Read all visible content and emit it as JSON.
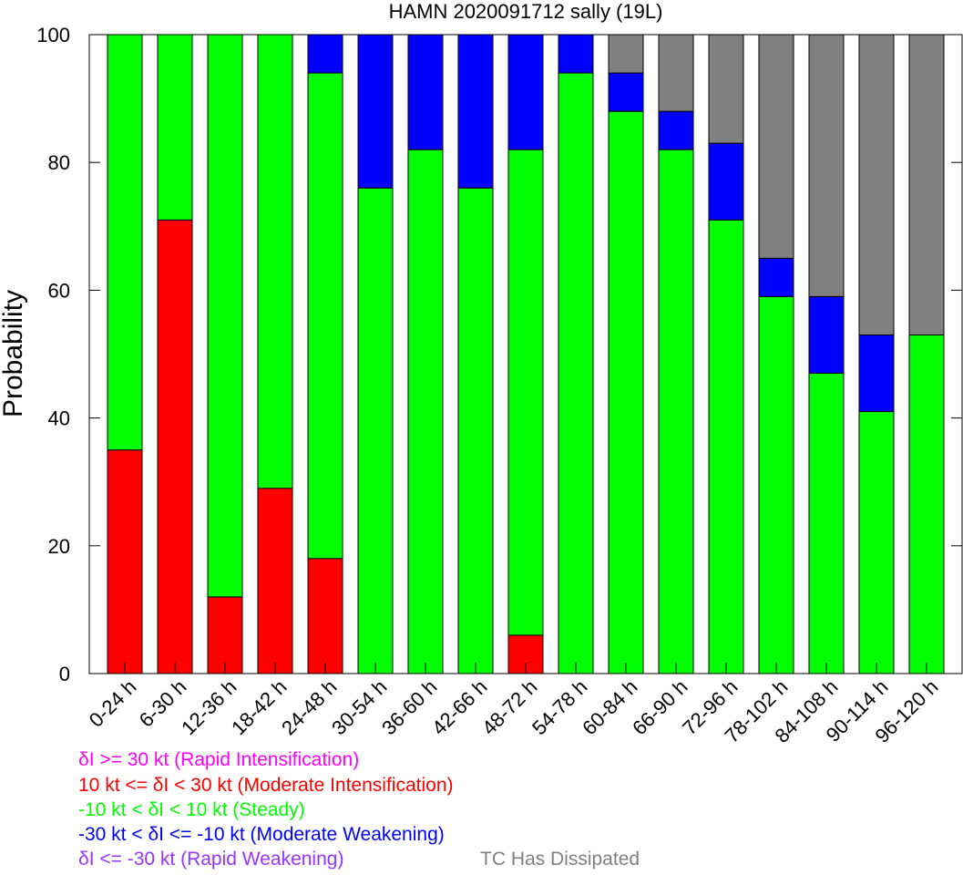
{
  "chart_data": {
    "type": "bar",
    "stacked": true,
    "title": "HAMN 2020091712 sally (19L)",
    "xlabel": "",
    "ylabel": "Probability",
    "ylim": [
      0,
      100
    ],
    "yticks": [
      "0",
      "20",
      "40",
      "60",
      "80",
      "100"
    ],
    "categories": [
      "0-24 h",
      "6-30 h",
      "12-36 h",
      "18-42 h",
      "24-48 h",
      "30-54 h",
      "36-60 h",
      "42-66 h",
      "48-72 h",
      "54-78 h",
      "60-84 h",
      "66-90 h",
      "72-96 h",
      "78-102 h",
      "84-108 h",
      "90-114 h",
      "96-120 h"
    ],
    "series": [
      {
        "name": "Rapid Intensification",
        "color": "#ff00ff",
        "values": [
          0,
          0,
          0,
          0,
          0,
          0,
          0,
          0,
          0,
          0,
          0,
          0,
          0,
          0,
          0,
          0,
          0
        ]
      },
      {
        "name": "Moderate Intensification",
        "color": "#ff0000",
        "values": [
          35,
          71,
          12,
          29,
          18,
          0,
          0,
          0,
          6,
          0,
          0,
          0,
          0,
          0,
          0,
          0,
          0
        ]
      },
      {
        "name": "Steady",
        "color": "#00ff00",
        "values": [
          65,
          29,
          88,
          71,
          76,
          76,
          82,
          76,
          76,
          94,
          88,
          82,
          71,
          59,
          47,
          41,
          53
        ]
      },
      {
        "name": "Moderate Weakening",
        "color": "#0000ff",
        "values": [
          0,
          0,
          0,
          0,
          6,
          24,
          18,
          24,
          18,
          6,
          6,
          6,
          12,
          6,
          12,
          12,
          0
        ]
      },
      {
        "name": "Rapid Weakening",
        "color": "#9933ff",
        "values": [
          0,
          0,
          0,
          0,
          0,
          0,
          0,
          0,
          0,
          0,
          0,
          0,
          0,
          0,
          0,
          0,
          0
        ]
      },
      {
        "name": "TC Has Dissipated",
        "color": "#808080",
        "values": [
          0,
          0,
          0,
          0,
          0,
          0,
          0,
          0,
          0,
          0,
          6,
          12,
          17,
          35,
          41,
          47,
          47
        ]
      }
    ],
    "legend": [
      {
        "text": "δI >= 30 kt (Rapid Intensification)",
        "color": "#ff00ff"
      },
      {
        "text": "10 kt <= δI < 30 kt (Moderate Intensification)",
        "color": "#ff0000"
      },
      {
        "text": "-10 kt < δI < 10 kt (Steady)",
        "color": "#00ff00"
      },
      {
        "text": "-30 kt < δI <= -10 kt (Moderate Weakening)",
        "color": "#0000ff"
      },
      {
        "text": "δI <= -30 kt (Rapid Weakening)",
        "color": "#9933ff"
      },
      {
        "text": "TC Has Dissipated",
        "color": "#808080"
      }
    ]
  }
}
